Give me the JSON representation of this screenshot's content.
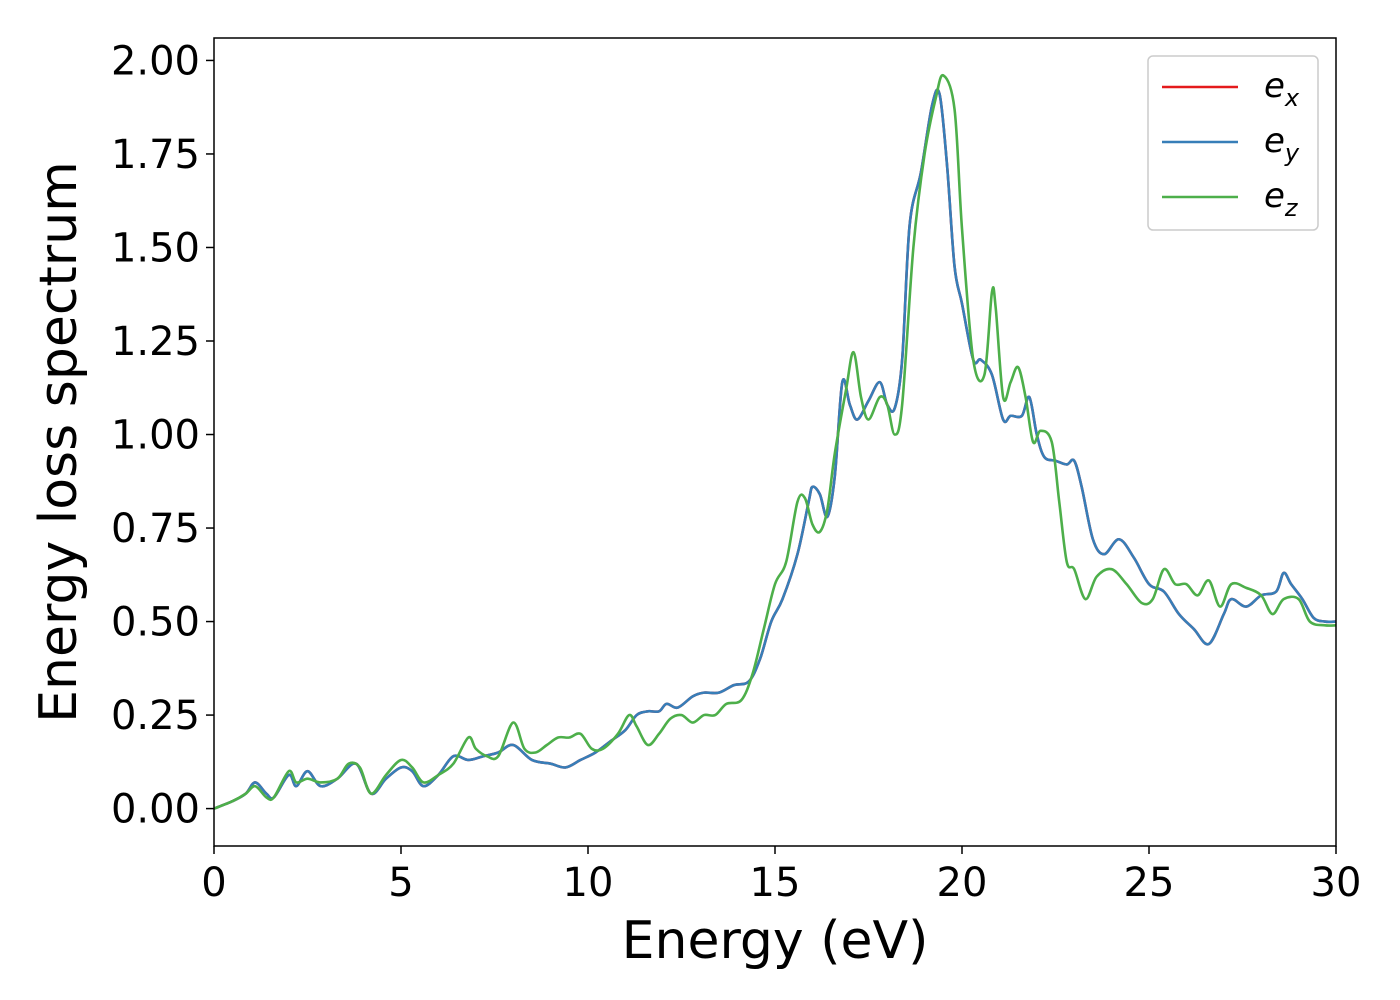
{
  "chart_data": {
    "type": "line",
    "title": "",
    "xlabel": "Energy (eV)",
    "ylabel": "Energy loss spectrum",
    "xlim": [
      0,
      30
    ],
    "ylim": [
      -0.1,
      2.06
    ],
    "xticks": [
      0,
      5,
      10,
      15,
      20,
      25,
      30
    ],
    "xtick_labels": [
      "0",
      "5",
      "10",
      "15",
      "20",
      "25",
      "30"
    ],
    "yticks": [
      0.0,
      0.25,
      0.5,
      0.75,
      1.0,
      1.25,
      1.5,
      1.75,
      2.0
    ],
    "ytick_labels": [
      "0.00",
      "0.25",
      "0.50",
      "0.75",
      "1.00",
      "1.25",
      "1.50",
      "1.75",
      "2.00"
    ],
    "grid": false,
    "legend_position": "top-right",
    "series": [
      {
        "name": "e_x",
        "label_base": "e",
        "label_sub": "x",
        "color": "#e41a1c",
        "x": [
          0,
          0.5,
          0.85,
          1.1,
          1.4,
          1.6,
          2.0,
          2.2,
          2.5,
          2.85,
          3.3,
          3.8,
          4.2,
          4.6,
          5.0,
          5.3,
          5.6,
          6.0,
          6.4,
          6.8,
          7.2,
          7.6,
          8.0,
          8.5,
          9.0,
          9.4,
          9.8,
          10.2,
          10.6,
          11.0,
          11.3,
          11.6,
          11.9,
          12.1,
          12.4,
          12.8,
          13.1,
          13.5,
          13.9,
          14.3,
          14.6,
          14.9,
          15.2,
          15.6,
          15.9,
          16.0,
          16.2,
          16.4,
          16.6,
          16.8,
          17.0,
          17.2,
          17.5,
          17.8,
          18.0,
          18.2,
          18.4,
          18.6,
          18.9,
          19.2,
          19.4,
          19.6,
          19.8,
          20.0,
          20.3,
          20.5,
          20.8,
          21.1,
          21.3,
          21.6,
          21.8,
          22.0,
          22.2,
          22.5,
          22.8,
          23.0,
          23.2,
          23.5,
          23.8,
          24.2,
          24.6,
          25.0,
          25.4,
          25.8,
          26.2,
          26.6,
          27.0,
          27.2,
          27.6,
          28.0,
          28.4,
          28.6,
          28.8,
          29.1,
          29.4,
          29.7,
          30.0
        ],
        "y": [
          0.0,
          0.02,
          0.04,
          0.07,
          0.04,
          0.03,
          0.09,
          0.06,
          0.1,
          0.06,
          0.08,
          0.12,
          0.04,
          0.08,
          0.11,
          0.1,
          0.06,
          0.09,
          0.14,
          0.13,
          0.14,
          0.15,
          0.17,
          0.13,
          0.12,
          0.11,
          0.13,
          0.15,
          0.18,
          0.21,
          0.25,
          0.26,
          0.26,
          0.28,
          0.27,
          0.3,
          0.31,
          0.31,
          0.33,
          0.34,
          0.4,
          0.5,
          0.56,
          0.68,
          0.82,
          0.86,
          0.84,
          0.78,
          0.89,
          1.14,
          1.08,
          1.04,
          1.09,
          1.14,
          1.08,
          1.07,
          1.2,
          1.56,
          1.7,
          1.88,
          1.91,
          1.72,
          1.45,
          1.35,
          1.2,
          1.2,
          1.16,
          1.04,
          1.05,
          1.05,
          1.1,
          1.0,
          0.94,
          0.93,
          0.92,
          0.93,
          0.86,
          0.72,
          0.68,
          0.72,
          0.67,
          0.6,
          0.58,
          0.52,
          0.48,
          0.44,
          0.52,
          0.56,
          0.54,
          0.57,
          0.58,
          0.63,
          0.6,
          0.56,
          0.51,
          0.5,
          0.5
        ]
      },
      {
        "name": "e_y",
        "label_base": "e",
        "label_sub": "y",
        "color": "#377eb8",
        "x": [
          0,
          0.5,
          0.85,
          1.1,
          1.4,
          1.6,
          2.0,
          2.2,
          2.5,
          2.85,
          3.3,
          3.8,
          4.2,
          4.6,
          5.0,
          5.3,
          5.6,
          6.0,
          6.4,
          6.8,
          7.2,
          7.6,
          8.0,
          8.5,
          9.0,
          9.4,
          9.8,
          10.2,
          10.6,
          11.0,
          11.3,
          11.6,
          11.9,
          12.1,
          12.4,
          12.8,
          13.1,
          13.5,
          13.9,
          14.3,
          14.6,
          14.9,
          15.2,
          15.6,
          15.9,
          16.0,
          16.2,
          16.4,
          16.6,
          16.8,
          17.0,
          17.2,
          17.5,
          17.8,
          18.0,
          18.2,
          18.4,
          18.6,
          18.9,
          19.2,
          19.4,
          19.6,
          19.8,
          20.0,
          20.3,
          20.5,
          20.8,
          21.1,
          21.3,
          21.6,
          21.8,
          22.0,
          22.2,
          22.5,
          22.8,
          23.0,
          23.2,
          23.5,
          23.8,
          24.2,
          24.6,
          25.0,
          25.4,
          25.8,
          26.2,
          26.6,
          27.0,
          27.2,
          27.6,
          28.0,
          28.4,
          28.6,
          28.8,
          29.1,
          29.4,
          29.7,
          30.0
        ],
        "y": [
          0.0,
          0.02,
          0.04,
          0.07,
          0.04,
          0.03,
          0.09,
          0.06,
          0.1,
          0.06,
          0.08,
          0.12,
          0.04,
          0.08,
          0.11,
          0.1,
          0.06,
          0.09,
          0.14,
          0.13,
          0.14,
          0.15,
          0.17,
          0.13,
          0.12,
          0.11,
          0.13,
          0.15,
          0.18,
          0.21,
          0.25,
          0.26,
          0.26,
          0.28,
          0.27,
          0.3,
          0.31,
          0.31,
          0.33,
          0.34,
          0.4,
          0.5,
          0.56,
          0.68,
          0.82,
          0.86,
          0.84,
          0.78,
          0.89,
          1.14,
          1.08,
          1.04,
          1.09,
          1.14,
          1.08,
          1.07,
          1.2,
          1.56,
          1.7,
          1.88,
          1.91,
          1.72,
          1.45,
          1.35,
          1.2,
          1.2,
          1.16,
          1.04,
          1.05,
          1.05,
          1.1,
          1.0,
          0.94,
          0.93,
          0.92,
          0.93,
          0.86,
          0.72,
          0.68,
          0.72,
          0.67,
          0.6,
          0.58,
          0.52,
          0.48,
          0.44,
          0.52,
          0.56,
          0.54,
          0.57,
          0.58,
          0.63,
          0.6,
          0.56,
          0.51,
          0.5,
          0.5
        ]
      },
      {
        "name": "e_z",
        "label_base": "e",
        "label_sub": "z",
        "color": "#4daf4a",
        "x": [
          0,
          0.5,
          0.85,
          1.1,
          1.4,
          1.6,
          2.0,
          2.2,
          2.5,
          2.85,
          3.3,
          3.6,
          3.9,
          4.2,
          4.6,
          5.0,
          5.3,
          5.6,
          6.0,
          6.4,
          6.8,
          7.0,
          7.3,
          7.6,
          8.0,
          8.3,
          8.6,
          8.9,
          9.2,
          9.5,
          9.8,
          10.1,
          10.4,
          10.8,
          11.1,
          11.3,
          11.6,
          11.9,
          12.2,
          12.5,
          12.8,
          13.1,
          13.4,
          13.7,
          14.1,
          14.4,
          14.7,
          15.0,
          15.3,
          15.6,
          15.8,
          16.0,
          16.2,
          16.4,
          16.6,
          16.9,
          17.1,
          17.3,
          17.5,
          17.8,
          18.0,
          18.2,
          18.4,
          18.7,
          19.0,
          19.3,
          19.5,
          19.8,
          20.0,
          20.3,
          20.6,
          20.8,
          20.9,
          21.1,
          21.3,
          21.5,
          21.7,
          21.9,
          22.1,
          22.4,
          22.6,
          22.8,
          23.0,
          23.3,
          23.6,
          24.0,
          24.4,
          24.8,
          25.1,
          25.4,
          25.7,
          26.0,
          26.3,
          26.6,
          26.9,
          27.2,
          27.6,
          28.0,
          28.3,
          28.6,
          29.0,
          29.3,
          29.7,
          30.0
        ],
        "y": [
          0.0,
          0.02,
          0.04,
          0.06,
          0.03,
          0.03,
          0.1,
          0.07,
          0.08,
          0.07,
          0.08,
          0.12,
          0.11,
          0.04,
          0.09,
          0.13,
          0.11,
          0.07,
          0.09,
          0.12,
          0.19,
          0.16,
          0.14,
          0.14,
          0.23,
          0.16,
          0.15,
          0.17,
          0.19,
          0.19,
          0.2,
          0.16,
          0.16,
          0.2,
          0.25,
          0.22,
          0.17,
          0.2,
          0.24,
          0.25,
          0.23,
          0.25,
          0.25,
          0.28,
          0.29,
          0.36,
          0.48,
          0.6,
          0.66,
          0.82,
          0.83,
          0.76,
          0.74,
          0.8,
          0.95,
          1.12,
          1.22,
          1.1,
          1.04,
          1.1,
          1.08,
          1.0,
          1.08,
          1.5,
          1.75,
          1.9,
          1.96,
          1.87,
          1.55,
          1.2,
          1.16,
          1.38,
          1.34,
          1.1,
          1.14,
          1.18,
          1.1,
          0.98,
          1.01,
          0.98,
          0.82,
          0.66,
          0.64,
          0.56,
          0.62,
          0.64,
          0.6,
          0.55,
          0.56,
          0.64,
          0.6,
          0.6,
          0.57,
          0.61,
          0.54,
          0.6,
          0.59,
          0.57,
          0.52,
          0.56,
          0.56,
          0.5,
          0.49,
          0.49
        ]
      }
    ]
  }
}
